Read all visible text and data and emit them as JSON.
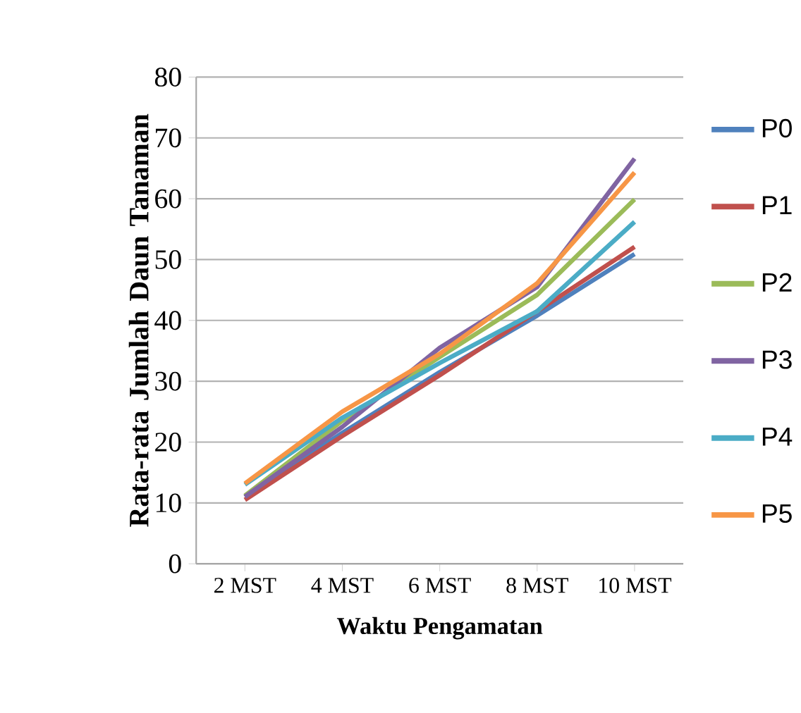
{
  "chart_data": {
    "type": "line",
    "xlabel": "Waktu Pengamatan",
    "ylabel": "Rata-rata Jumlah Daun Tanaman",
    "categories": [
      "2 MST",
      "4 MST",
      "6 MST",
      "8 MST",
      "10 MST"
    ],
    "series": [
      {
        "name": "P0",
        "color": "#4f81bd",
        "values": [
          11,
          21.5,
          31.5,
          40.8,
          50.9
        ]
      },
      {
        "name": "P1",
        "color": "#c0504d",
        "values": [
          10.5,
          21,
          31,
          41.5,
          52.1
        ]
      },
      {
        "name": "P2",
        "color": "#9bbb59",
        "values": [
          11.2,
          23.5,
          34,
          44.2,
          59.9
        ]
      },
      {
        "name": "P3",
        "color": "#8064a2",
        "values": [
          11,
          22.5,
          35.5,
          45.5,
          66.6
        ]
      },
      {
        "name": "P4",
        "color": "#4bacc6",
        "values": [
          13,
          24,
          33,
          41.5,
          56.2
        ]
      },
      {
        "name": "P5",
        "color": "#f79646",
        "values": [
          13.2,
          25,
          34.5,
          46.1,
          64.3
        ]
      }
    ],
    "ylim": [
      0,
      80
    ],
    "yticks": [
      0,
      10,
      20,
      30,
      40,
      50,
      60,
      70,
      80
    ],
    "grid": "y",
    "legend": "right",
    "marker": "none",
    "line_style": "solid"
  }
}
